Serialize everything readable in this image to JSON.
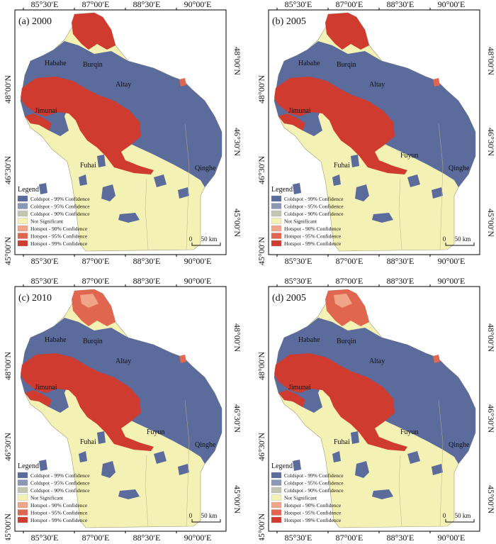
{
  "colors": {
    "coldspot_99": "#5b6b9c",
    "coldspot_95": "#8b98b4",
    "coldspot_90": "#c3c6b3",
    "not_significant": "#f4f1b5",
    "hotspot_90": "#f0a488",
    "hotspot_95": "#e0664f",
    "hotspot_99": "#cf3b2f"
  },
  "axes": {
    "top_ticks": [
      "85°30′E",
      "87°00′E",
      "88°30′E",
      "90°00′E"
    ],
    "bottom_ticks": [
      "85°30′E",
      "87°00′E",
      "88°30′E",
      "90°00′E"
    ],
    "left_ticks": [
      "48°00′N",
      "46°30′N",
      "45°00′N"
    ],
    "right_ticks": [
      "48°00′N",
      "46°30′N",
      "45°00′N"
    ]
  },
  "legend": {
    "title": "Legend",
    "items": [
      {
        "label": "Coldspot - 99% Confidence",
        "color_key": "coldspot_99"
      },
      {
        "label": "Coldspot - 95% Confidence",
        "color_key": "coldspot_95"
      },
      {
        "label": "Coldspot - 90% Confidence",
        "color_key": "coldspot_90"
      },
      {
        "label": "Not Significant",
        "color_key": "not_significant"
      },
      {
        "label": "Hotspot - 90% Confidence",
        "color_key": "hotspot_90"
      },
      {
        "label": "Hotspot - 95% Confidence",
        "color_key": "hotspot_95"
      },
      {
        "label": "Hotspot - 99% Confidence",
        "color_key": "hotspot_99"
      }
    ]
  },
  "scale_bar": {
    "zero": "0",
    "distance": "50 km"
  },
  "panels": [
    {
      "title": "(a) 2000",
      "places": [
        "Habahe",
        "Burqin",
        "Altay",
        "Jimunai",
        "Fuhai",
        "Qinghe"
      ]
    },
    {
      "title": "(b) 2005",
      "places": [
        "Habahe",
        "Burqin",
        "Altay",
        "Jimunai",
        "Fuyun",
        "Fuhai",
        "Qinghe"
      ]
    },
    {
      "title": "(c) 2010",
      "places": [
        "Habahe",
        "Burqin",
        "Altay",
        "Jimunai",
        "Fuyun",
        "Fuhai",
        "Qinghe"
      ]
    },
    {
      "title": "(d) 2005",
      "places": [
        "Habahe",
        "Burqin",
        "Altay",
        "Jimunai",
        "Fuyun",
        "Fuhai",
        "Qinghe"
      ]
    }
  ]
}
